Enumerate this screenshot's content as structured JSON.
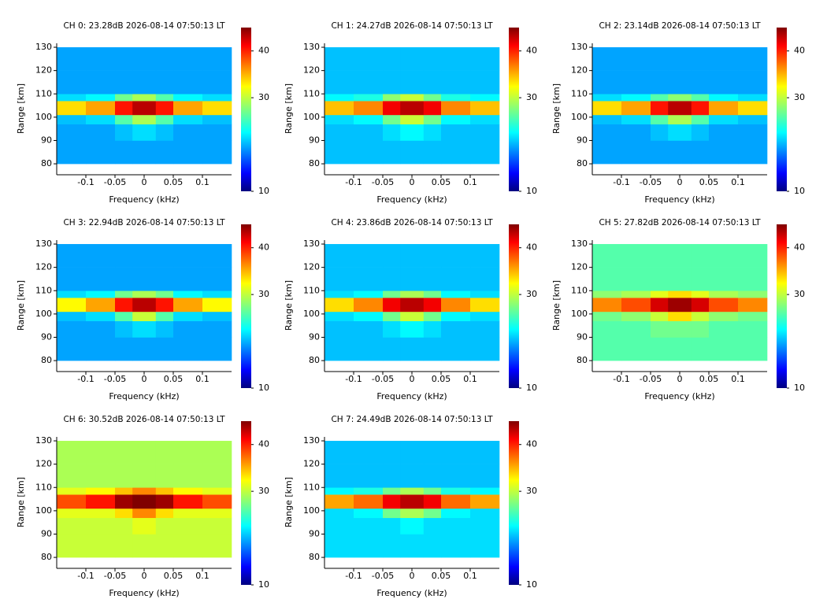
{
  "chart_data": [
    {
      "type": "heatmap",
      "title": "CH 0: 23.28dB 2026-08-14 07:50:13 LT",
      "xlabel": "Frequency (kHz)",
      "ylabel": "Range [km]",
      "xlim": [
        -0.15,
        0.15
      ],
      "ylim": [
        75.3,
        131.7
      ],
      "xticks": [
        -0.1,
        -0.05,
        0,
        0.05,
        0.1
      ],
      "yticks": [
        80,
        90,
        100,
        110,
        120,
        130
      ],
      "xbins": [
        -0.15,
        -0.1,
        -0.05,
        -0.02,
        0.02,
        0.05,
        0.1,
        0.15
      ],
      "ybins": [
        80,
        90,
        97,
        101,
        107,
        110,
        120,
        130
      ],
      "clim": [
        10,
        45
      ],
      "cticks": [
        10,
        30,
        40
      ],
      "z": [
        [
          20,
          20,
          20,
          20,
          20,
          20,
          20
        ],
        [
          20,
          20,
          21,
          22,
          21,
          20,
          20
        ],
        [
          21,
          22,
          26,
          29,
          26,
          22,
          21
        ],
        [
          33,
          35,
          40,
          43,
          40,
          35,
          33
        ],
        [
          22,
          23,
          27,
          29,
          26,
          23,
          22
        ],
        [
          20,
          20,
          20,
          20,
          20,
          20,
          20
        ],
        [
          20,
          20,
          20,
          20,
          20,
          20,
          20
        ]
      ]
    },
    {
      "type": "heatmap",
      "title": "CH 1: 24.27dB 2026-08-14 07:50:13 LT",
      "xlabel": "Frequency (kHz)",
      "ylabel": "Range [km]",
      "xlim": [
        -0.15,
        0.15
      ],
      "ylim": [
        75.3,
        131.7
      ],
      "xticks": [
        -0.1,
        -0.05,
        0,
        0.05,
        0.1
      ],
      "yticks": [
        80,
        90,
        100,
        110,
        120,
        130
      ],
      "xbins": [
        -0.15,
        -0.1,
        -0.05,
        -0.02,
        0.02,
        0.05,
        0.1,
        0.15
      ],
      "ybins": [
        80,
        90,
        97,
        101,
        107,
        110,
        120,
        130
      ],
      "clim": [
        10,
        45
      ],
      "cticks": [
        10,
        30,
        40
      ],
      "z": [
        [
          21,
          21,
          21,
          21,
          21,
          21,
          21
        ],
        [
          21,
          21,
          22,
          23,
          22,
          21,
          21
        ],
        [
          22,
          23,
          27,
          30,
          27,
          23,
          22
        ],
        [
          34,
          36,
          41,
          43,
          41,
          36,
          34
        ],
        [
          23,
          24,
          28,
          30,
          27,
          24,
          23
        ],
        [
          21,
          21,
          21,
          21,
          21,
          21,
          21
        ],
        [
          21,
          21,
          21,
          21,
          21,
          21,
          21
        ]
      ]
    },
    {
      "type": "heatmap",
      "title": "CH 2: 23.14dB 2026-08-14 07:50:13 LT",
      "xlabel": "Frequency (kHz)",
      "ylabel": "Range [km]",
      "xlim": [
        -0.15,
        0.15
      ],
      "ylim": [
        75.3,
        131.7
      ],
      "xticks": [
        -0.1,
        -0.05,
        0,
        0.05,
        0.1
      ],
      "yticks": [
        80,
        90,
        100,
        110,
        120,
        130
      ],
      "xbins": [
        -0.15,
        -0.1,
        -0.05,
        -0.02,
        0.02,
        0.05,
        0.1,
        0.15
      ],
      "ybins": [
        80,
        90,
        97,
        101,
        107,
        110,
        120,
        130
      ],
      "clim": [
        10,
        45
      ],
      "cticks": [
        10,
        30,
        40
      ],
      "z": [
        [
          20,
          20,
          20,
          20,
          20,
          20,
          20
        ],
        [
          20,
          20,
          21,
          22,
          21,
          20,
          20
        ],
        [
          21,
          22,
          26,
          29,
          26,
          22,
          21
        ],
        [
          33,
          35,
          40,
          43,
          40,
          35,
          33
        ],
        [
          22,
          23,
          26,
          28,
          26,
          23,
          22
        ],
        [
          20,
          20,
          20,
          20,
          20,
          20,
          20
        ],
        [
          20,
          20,
          20,
          20,
          20,
          20,
          20
        ]
      ]
    },
    {
      "type": "heatmap",
      "title": "CH 3: 22.94dB 2026-08-14 07:50:13 LT",
      "xlabel": "Frequency (kHz)",
      "ylabel": "Range [km]",
      "xlim": [
        -0.15,
        0.15
      ],
      "ylim": [
        75.3,
        131.7
      ],
      "xticks": [
        -0.1,
        -0.05,
        0,
        0.05,
        0.1
      ],
      "yticks": [
        80,
        90,
        100,
        110,
        120,
        130
      ],
      "xbins": [
        -0.15,
        -0.1,
        -0.05,
        -0.02,
        0.02,
        0.05,
        0.1,
        0.15
      ],
      "ybins": [
        80,
        90,
        97,
        101,
        107,
        110,
        120,
        130
      ],
      "clim": [
        10,
        45
      ],
      "cticks": [
        10,
        30,
        40
      ],
      "z": [
        [
          20,
          20,
          20,
          20,
          20,
          20,
          20
        ],
        [
          20,
          20,
          21,
          22,
          21,
          20,
          20
        ],
        [
          21,
          22,
          26,
          30,
          26,
          22,
          21
        ],
        [
          32,
          35,
          40,
          43,
          40,
          35,
          32
        ],
        [
          22,
          23,
          27,
          29,
          27,
          23,
          22
        ],
        [
          20,
          20,
          20,
          20,
          20,
          20,
          20
        ],
        [
          20,
          20,
          20,
          20,
          20,
          20,
          20
        ]
      ]
    },
    {
      "type": "heatmap",
      "title": "CH 4: 23.86dB 2026-08-14 07:50:13 LT",
      "xlabel": "Frequency (kHz)",
      "ylabel": "Range [km]",
      "xlim": [
        -0.15,
        0.15
      ],
      "ylim": [
        75.3,
        131.7
      ],
      "xticks": [
        -0.1,
        -0.05,
        0,
        0.05,
        0.1
      ],
      "yticks": [
        80,
        90,
        100,
        110,
        120,
        130
      ],
      "xbins": [
        -0.15,
        -0.1,
        -0.05,
        -0.02,
        0.02,
        0.05,
        0.1,
        0.15
      ],
      "ybins": [
        80,
        90,
        97,
        101,
        107,
        110,
        120,
        130
      ],
      "clim": [
        10,
        45
      ],
      "cticks": [
        10,
        30,
        40
      ],
      "z": [
        [
          21,
          21,
          21,
          21,
          21,
          21,
          21
        ],
        [
          21,
          21,
          22,
          23,
          22,
          21,
          21
        ],
        [
          22,
          23,
          27,
          30,
          27,
          23,
          22
        ],
        [
          33,
          36,
          41,
          43,
          41,
          36,
          33
        ],
        [
          22,
          23,
          27,
          29,
          27,
          23,
          22
        ],
        [
          21,
          21,
          21,
          21,
          21,
          21,
          21
        ],
        [
          21,
          21,
          21,
          21,
          21,
          21,
          21
        ]
      ]
    },
    {
      "type": "heatmap",
      "title": "CH 5: 27.82dB 2026-08-14 07:50:13 LT",
      "xlabel": "Frequency (kHz)",
      "ylabel": "Range [km]",
      "xlim": [
        -0.15,
        0.15
      ],
      "ylim": [
        75.3,
        131.7
      ],
      "xticks": [
        -0.1,
        -0.05,
        0,
        0.05,
        0.1
      ],
      "yticks": [
        80,
        90,
        100,
        110,
        120,
        130
      ],
      "xbins": [
        -0.15,
        -0.1,
        -0.05,
        -0.02,
        0.02,
        0.05,
        0.1,
        0.15
      ],
      "ybins": [
        80,
        90,
        97,
        101,
        107,
        110,
        120,
        130
      ],
      "clim": [
        10,
        45
      ],
      "cticks": [
        10,
        30,
        40
      ],
      "z": [
        [
          26,
          26,
          26,
          26,
          26,
          26,
          26
        ],
        [
          26,
          26,
          27,
          27,
          27,
          26,
          26
        ],
        [
          27,
          28,
          30,
          33,
          30,
          28,
          27
        ],
        [
          36,
          38,
          42,
          44,
          42,
          38,
          36
        ],
        [
          28,
          29,
          31,
          33,
          31,
          29,
          28
        ],
        [
          26,
          26,
          26,
          26,
          26,
          26,
          26
        ],
        [
          26,
          26,
          26,
          26,
          26,
          26,
          26
        ]
      ]
    },
    {
      "type": "heatmap",
      "title": "CH 6: 30.52dB 2026-08-14 07:50:13 LT",
      "xlabel": "Frequency (kHz)",
      "ylabel": "Range [km]",
      "xlim": [
        -0.15,
        0.15
      ],
      "ylim": [
        75.3,
        131.7
      ],
      "xticks": [
        -0.1,
        -0.05,
        0,
        0.05,
        0.1
      ],
      "yticks": [
        80,
        90,
        100,
        110,
        120,
        130
      ],
      "xbins": [
        -0.15,
        -0.1,
        -0.05,
        -0.02,
        0.02,
        0.05,
        0.1,
        0.15
      ],
      "ybins": [
        80,
        90,
        97,
        101,
        107,
        110,
        120,
        130
      ],
      "clim": [
        10,
        45
      ],
      "cticks": [
        10,
        30,
        40
      ],
      "z": [
        [
          30,
          30,
          30,
          30,
          30,
          30,
          30
        ],
        [
          30,
          30,
          30,
          31,
          30,
          30,
          30
        ],
        [
          31,
          31,
          33,
          36,
          33,
          31,
          31
        ],
        [
          38,
          40,
          44,
          45,
          44,
          40,
          38
        ],
        [
          31,
          32,
          34,
          36,
          34,
          32,
          31
        ],
        [
          29,
          29,
          29,
          29,
          29,
          29,
          29
        ],
        [
          29,
          29,
          29,
          29,
          29,
          29,
          29
        ]
      ]
    },
    {
      "type": "heatmap",
      "title": "CH 7: 24.49dB 2026-08-14 07:50:13 LT",
      "xlabel": "Frequency (kHz)",
      "ylabel": "Range [km]",
      "xlim": [
        -0.15,
        0.15
      ],
      "ylim": [
        75.3,
        131.7
      ],
      "xticks": [
        -0.1,
        -0.05,
        0,
        0.05,
        0.1
      ],
      "yticks": [
        80,
        90,
        100,
        110,
        120,
        130
      ],
      "xbins": [
        -0.15,
        -0.1,
        -0.05,
        -0.02,
        0.02,
        0.05,
        0.1,
        0.15
      ],
      "ybins": [
        80,
        90,
        97,
        101,
        107,
        110,
        120,
        130
      ],
      "clim": [
        10,
        45
      ],
      "cticks": [
        10,
        30,
        40
      ],
      "z": [
        [
          22,
          22,
          22,
          22,
          22,
          22,
          22
        ],
        [
          22,
          22,
          22,
          23,
          22,
          22,
          22
        ],
        [
          22,
          23,
          27,
          29,
          27,
          23,
          22
        ],
        [
          35,
          37,
          41,
          43,
          41,
          37,
          35
        ],
        [
          23,
          24,
          27,
          29,
          27,
          24,
          23
        ],
        [
          21,
          21,
          21,
          21,
          21,
          21,
          21
        ],
        [
          21,
          21,
          21,
          21,
          21,
          21,
          21
        ]
      ]
    }
  ]
}
